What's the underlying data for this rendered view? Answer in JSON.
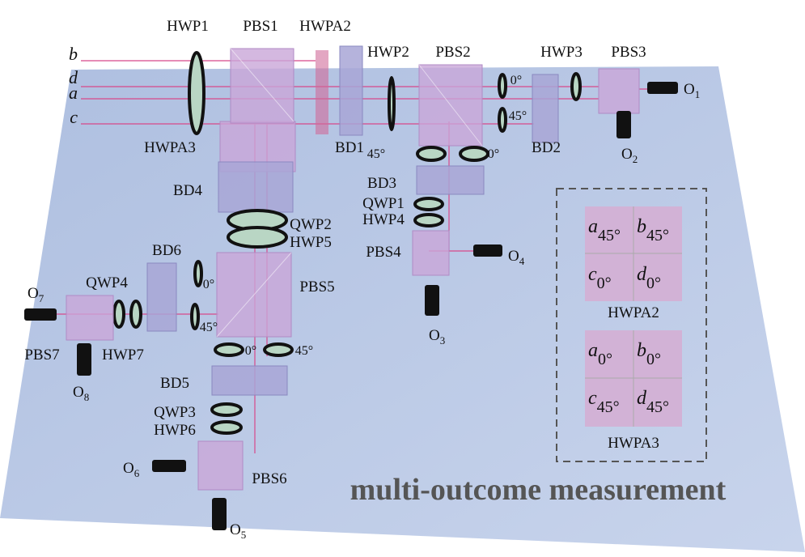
{
  "beams": [
    "b",
    "d",
    "a",
    "c"
  ],
  "components": [
    "HWP1",
    "PBS1",
    "HWPA2",
    "HWP2",
    "PBS2",
    "HWP3",
    "PBS3",
    "HWPA3",
    "BD1",
    "BD2",
    "BD3",
    "QWP1",
    "HWP4",
    "PBS4",
    "BD4",
    "QWP2",
    "HWP5",
    "BD6",
    "PBS5",
    "QWP4",
    "PBS7",
    "HWP7",
    "BD5",
    "QWP3",
    "HWP6",
    "PBS6"
  ],
  "angles": [
    "0°",
    "45°",
    "45°",
    "0°",
    "0°",
    "45°",
    "0°",
    "45°"
  ],
  "outputs": [
    {
      "base": "O",
      "sub": "1"
    },
    {
      "base": "O",
      "sub": "2"
    },
    {
      "base": "O",
      "sub": "4"
    },
    {
      "base": "O",
      "sub": "3"
    },
    {
      "base": "O",
      "sub": "7"
    },
    {
      "base": "O",
      "sub": "8"
    },
    {
      "base": "O",
      "sub": "6"
    },
    {
      "base": "O",
      "sub": "5"
    }
  ],
  "caption": "multi-outcome measurement",
  "inset": [
    {
      "label": "HWPA2",
      "cells": [
        {
          "letter": "a",
          "angle": "45°"
        },
        {
          "letter": "b",
          "angle": "45°"
        },
        {
          "letter": "c",
          "angle": "0°"
        },
        {
          "letter": "d",
          "angle": "0°"
        }
      ]
    },
    {
      "label": "HWPA3",
      "cells": [
        {
          "letter": "a",
          "angle": "0°"
        },
        {
          "letter": "b",
          "angle": "0°"
        },
        {
          "letter": "c",
          "angle": "45°"
        },
        {
          "letter": "d",
          "angle": "45°"
        }
      ]
    }
  ]
}
